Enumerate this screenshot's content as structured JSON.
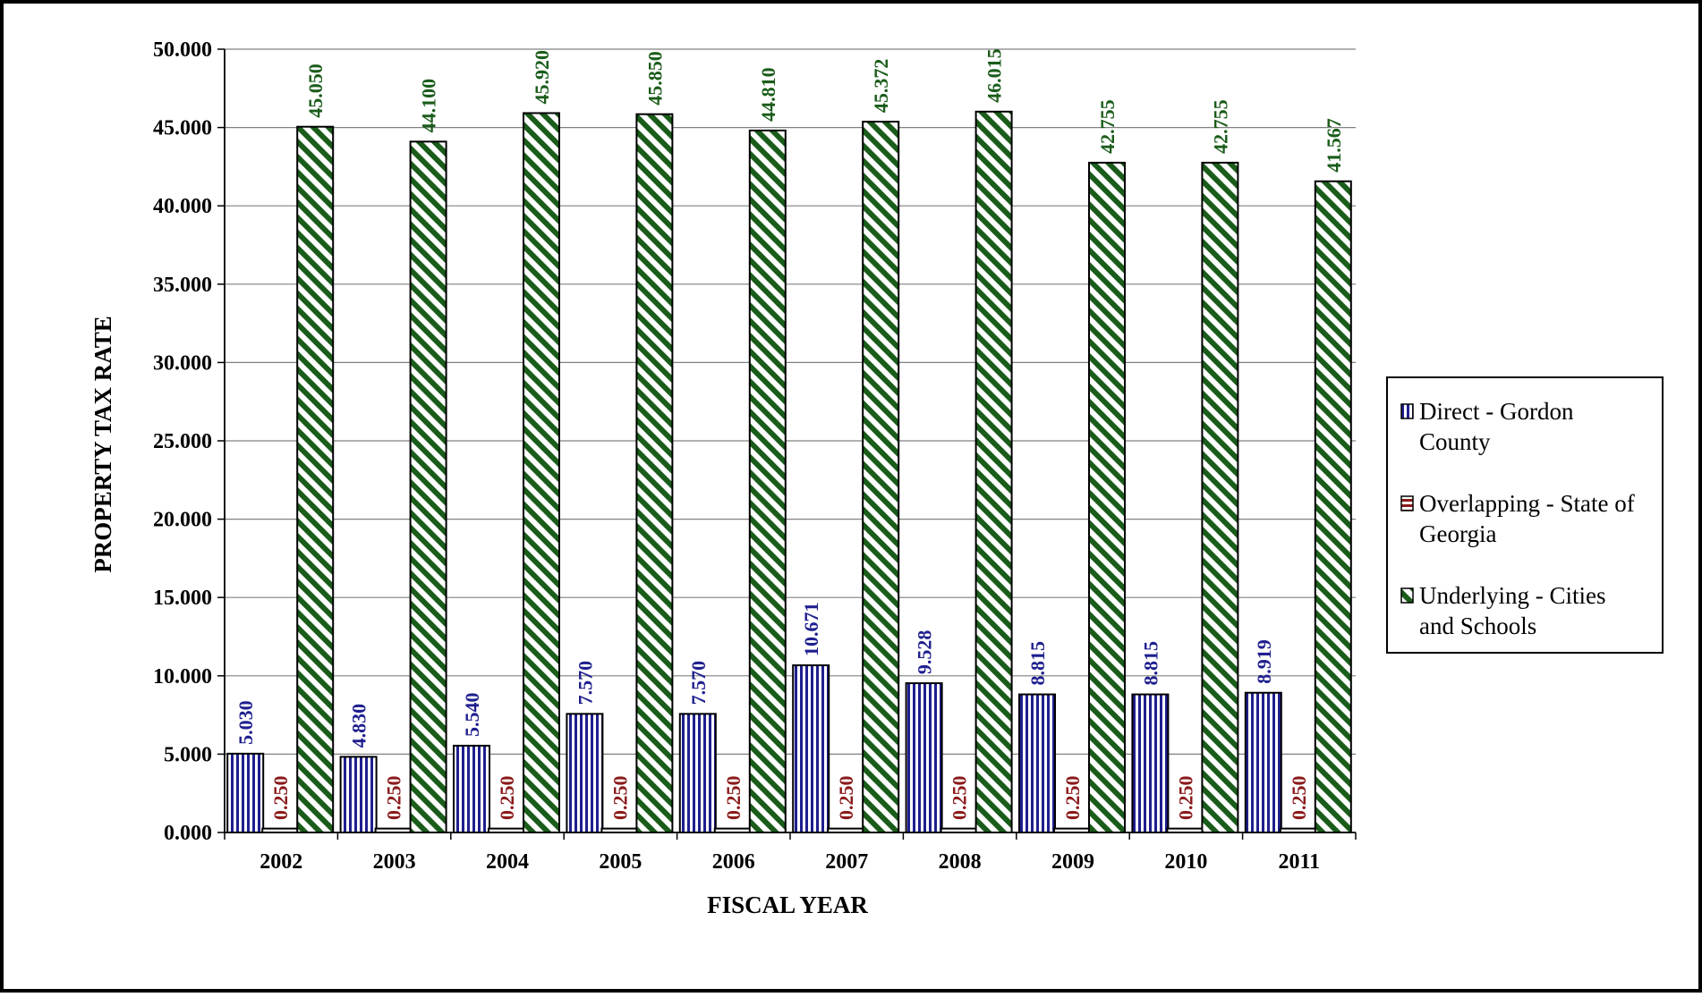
{
  "chart_data": {
    "type": "bar",
    "title": "",
    "xlabel": "FISCAL YEAR",
    "ylabel": "PROPERTY TAX RATE",
    "ylim": [
      0,
      50
    ],
    "yticks": [
      "0.000",
      "5.000",
      "10.000",
      "15.000",
      "20.000",
      "25.000",
      "30.000",
      "35.000",
      "40.000",
      "45.000",
      "50.000"
    ],
    "grid": true,
    "legend_position": "right",
    "categories": [
      "2002",
      "2003",
      "2004",
      "2005",
      "2006",
      "2007",
      "2008",
      "2009",
      "2010",
      "2011"
    ],
    "series": [
      {
        "name": "Direct - Gordon County",
        "color": "#1f1f8f",
        "pattern": "vertical-stripes",
        "values": [
          5.03,
          4.83,
          5.54,
          7.57,
          7.57,
          10.671,
          9.528,
          8.815,
          8.815,
          8.919
        ],
        "labels": [
          "5.030",
          "4.830",
          "5.540",
          "7.570",
          "7.570",
          "10.671",
          "9.528",
          "8.815",
          "8.815",
          "8.919"
        ]
      },
      {
        "name": "Overlapping - State of Georgia",
        "color": "#8b1a1a",
        "pattern": "horizontal-stripes",
        "values": [
          0.25,
          0.25,
          0.25,
          0.25,
          0.25,
          0.25,
          0.25,
          0.25,
          0.25,
          0.25
        ],
        "labels": [
          "0.250",
          "0.250",
          "0.250",
          "0.250",
          "0.250",
          "0.250",
          "0.250",
          "0.250",
          "0.250",
          "0.250"
        ]
      },
      {
        "name": "Underlying - Cities and Schools",
        "color": "#1a5c1a",
        "pattern": "diagonal-stripes",
        "values": [
          45.05,
          44.1,
          45.92,
          45.85,
          44.81,
          45.372,
          46.015,
          42.755,
          42.755,
          41.567
        ],
        "labels": [
          "45.050",
          "44.100",
          "45.920",
          "45.850",
          "44.810",
          "45.372",
          "46.015",
          "42.755",
          "42.755",
          "41.567"
        ]
      }
    ],
    "legend": [
      {
        "lines": [
          "Direct - Gordon",
          "County"
        ]
      },
      {
        "lines": [
          "Overlapping - State of",
          "Georgia"
        ]
      },
      {
        "lines": [
          "Underlying - Cities",
          "and Schools"
        ]
      }
    ]
  }
}
